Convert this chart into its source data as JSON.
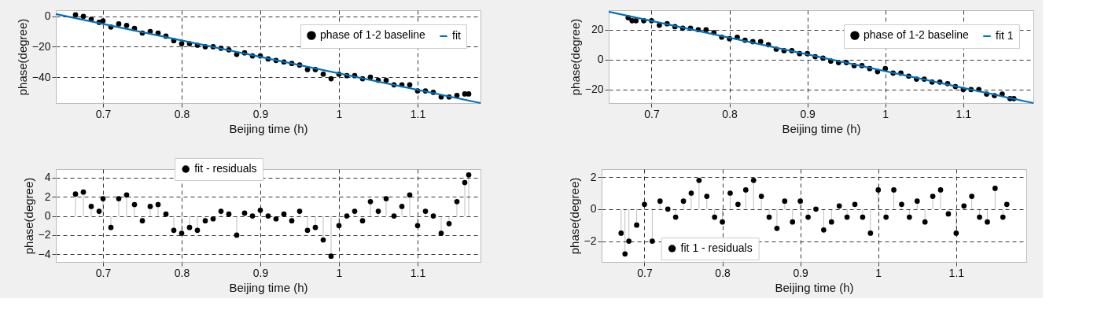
{
  "chart_data": [
    {
      "type": "scatter",
      "xlabel": "Beijing time (h)",
      "ylabel": "phase(degree)",
      "xlim": [
        0.64,
        1.18
      ],
      "ylim": [
        -57,
        4
      ],
      "xticks": [
        0.7,
        0.8,
        0.9,
        1,
        1.1
      ],
      "yticks": [
        -40,
        -20,
        0
      ],
      "grid": true,
      "legend": "top right",
      "marker": "circle",
      "line_style": "solid",
      "x": [
        0.665,
        0.675,
        0.685,
        0.695,
        0.7,
        0.71,
        0.72,
        0.73,
        0.74,
        0.75,
        0.76,
        0.77,
        0.78,
        0.79,
        0.8,
        0.81,
        0.82,
        0.83,
        0.84,
        0.85,
        0.86,
        0.87,
        0.88,
        0.89,
        0.9,
        0.91,
        0.92,
        0.93,
        0.94,
        0.95,
        0.96,
        0.97,
        0.98,
        0.99,
        1.0,
        1.01,
        1.02,
        1.03,
        1.04,
        1.05,
        1.06,
        1.07,
        1.08,
        1.09,
        1.1,
        1.11,
        1.12,
        1.13,
        1.14,
        1.15,
        1.16,
        1.165
      ],
      "series": [
        {
          "name": "phase of 1-2 baseline",
          "color": "#000000",
          "values": [
            1,
            0,
            -2,
            -4,
            -3,
            -7,
            -5,
            -6,
            -8,
            -11,
            -10,
            -11,
            -13,
            -16,
            -18,
            -18,
            -19,
            -20,
            -20,
            -21,
            -22,
            -25,
            -24,
            -26,
            -26,
            -28,
            -29,
            -30,
            -31,
            -32,
            -35,
            -35,
            -38,
            -41,
            -38,
            -39,
            -39,
            -41,
            -40,
            -42,
            -42,
            -45,
            -45,
            -45,
            -49,
            -49,
            -50,
            -53,
            -53,
            -52,
            -51,
            -51
          ]
        },
        {
          "name": "fit",
          "type": "line",
          "marker": "none",
          "color": "#0072bd",
          "x": [
            0.64,
            1.18
          ],
          "values": [
            1.5,
            -57
          ]
        }
      ]
    },
    {
      "type": "scatter",
      "xlabel": "Beijing time (h)",
      "ylabel": "phase(degree)",
      "xlim": [
        0.645,
        1.19
      ],
      "ylim": [
        -29,
        33
      ],
      "xticks": [
        0.7,
        0.8,
        0.9,
        1,
        1.1
      ],
      "yticks": [
        -20,
        0,
        20
      ],
      "grid": true,
      "legend": "top right",
      "marker": "circle",
      "line_style": "solid",
      "x": [
        0.67,
        0.675,
        0.68,
        0.69,
        0.7,
        0.71,
        0.72,
        0.73,
        0.74,
        0.75,
        0.76,
        0.77,
        0.78,
        0.79,
        0.8,
        0.81,
        0.82,
        0.83,
        0.84,
        0.85,
        0.86,
        0.87,
        0.88,
        0.89,
        0.9,
        0.91,
        0.92,
        0.93,
        0.94,
        0.95,
        0.96,
        0.97,
        0.98,
        0.99,
        1.0,
        1.01,
        1.02,
        1.03,
        1.04,
        1.05,
        1.06,
        1.07,
        1.08,
        1.09,
        1.1,
        1.11,
        1.12,
        1.13,
        1.14,
        1.15,
        1.16,
        1.165
      ],
      "series": [
        {
          "name": "phase of 1-2 baseline",
          "color": "#000000",
          "values": [
            28,
            26,
            26,
            26,
            26,
            23,
            24,
            22,
            21,
            21,
            20,
            20,
            18,
            15,
            14,
            15,
            13,
            12,
            12,
            10,
            7,
            6,
            6,
            4,
            4,
            2,
            1,
            -1,
            -2,
            -2,
            -4,
            -4,
            -6,
            -8,
            -6,
            -9,
            -9,
            -11,
            -13,
            -13,
            -15,
            -15,
            -16,
            -18,
            -20,
            -20,
            -20,
            -23,
            -24,
            -23,
            -26,
            -26
          ]
        },
        {
          "name": "fit 1",
          "type": "line",
          "marker": "none",
          "color": "#0072bd",
          "x": [
            0.645,
            1.19
          ],
          "values": [
            32,
            -29
          ]
        }
      ]
    },
    {
      "type": "lollipop",
      "xlabel": "Beijing time (h)",
      "ylabel": "phase(degree)",
      "xlim": [
        0.64,
        1.18
      ],
      "ylim": [
        -4.8,
        4.9
      ],
      "xticks": [
        0.7,
        0.8,
        0.9,
        1,
        1.1
      ],
      "yticks": [
        -4,
        -2,
        0,
        2,
        4
      ],
      "grid": true,
      "legend": "top",
      "marker": "circle",
      "x": [
        0.665,
        0.675,
        0.685,
        0.695,
        0.7,
        0.71,
        0.72,
        0.73,
        0.74,
        0.75,
        0.76,
        0.77,
        0.78,
        0.79,
        0.8,
        0.81,
        0.82,
        0.83,
        0.84,
        0.85,
        0.86,
        0.87,
        0.88,
        0.89,
        0.9,
        0.91,
        0.92,
        0.93,
        0.94,
        0.95,
        0.96,
        0.97,
        0.98,
        0.99,
        1.0,
        1.01,
        1.02,
        1.03,
        1.04,
        1.05,
        1.06,
        1.07,
        1.08,
        1.09,
        1.1,
        1.11,
        1.12,
        1.13,
        1.14,
        1.15,
        1.16,
        1.165
      ],
      "series": [
        {
          "name": "fit - residuals",
          "color": "#000000",
          "values": [
            2.3,
            2.5,
            1.0,
            0.5,
            1.8,
            -1.2,
            1.8,
            2.2,
            1.2,
            -0.5,
            1.0,
            1.2,
            0.2,
            -1.5,
            -1.8,
            -1.2,
            -1.5,
            -0.5,
            -0.3,
            0.5,
            0.2,
            -2.0,
            0.3,
            0.0,
            0.6,
            0.0,
            -0.3,
            0.2,
            -0.5,
            0.5,
            -1.5,
            -1.2,
            -2.5,
            -4.2,
            -1.0,
            0.0,
            0.5,
            -0.5,
            1.5,
            0.5,
            1.8,
            0.0,
            1.0,
            2.2,
            -1.0,
            0.5,
            0.0,
            -1.8,
            -0.8,
            1.5,
            3.5,
            4.3
          ]
        }
      ]
    },
    {
      "type": "lollipop",
      "xlabel": "Beijing time (h)",
      "ylabel": "phase(degree)",
      "xlim": [
        0.645,
        1.19
      ],
      "ylim": [
        -3.3,
        2.5
      ],
      "xticks": [
        0.7,
        0.8,
        0.9,
        1,
        1.1
      ],
      "yticks": [
        -2,
        0,
        2
      ],
      "grid": true,
      "legend": "bottom left",
      "marker": "circle",
      "x": [
        0.67,
        0.675,
        0.68,
        0.69,
        0.7,
        0.71,
        0.72,
        0.73,
        0.74,
        0.75,
        0.76,
        0.77,
        0.78,
        0.79,
        0.8,
        0.81,
        0.82,
        0.83,
        0.84,
        0.85,
        0.86,
        0.87,
        0.88,
        0.89,
        0.9,
        0.91,
        0.92,
        0.93,
        0.94,
        0.95,
        0.96,
        0.97,
        0.98,
        0.99,
        1.0,
        1.01,
        1.02,
        1.03,
        1.04,
        1.05,
        1.06,
        1.07,
        1.08,
        1.09,
        1.1,
        1.11,
        1.12,
        1.13,
        1.14,
        1.15,
        1.16,
        1.165
      ],
      "series": [
        {
          "name": "fit 1 - residuals",
          "color": "#000000",
          "values": [
            -1.5,
            -2.8,
            -2.0,
            -1.0,
            0.3,
            -2.0,
            0.5,
            0.0,
            -0.5,
            0.5,
            1.0,
            1.8,
            0.8,
            -0.5,
            -0.8,
            1.0,
            0.3,
            1.2,
            1.8,
            0.8,
            -0.5,
            -1.2,
            0.5,
            -0.8,
            0.5,
            -0.5,
            0.0,
            -1.3,
            -0.8,
            0.2,
            -0.5,
            0.3,
            -0.5,
            -1.5,
            1.2,
            -0.5,
            1.2,
            0.3,
            -0.5,
            0.5,
            -0.8,
            0.8,
            1.2,
            -0.3,
            -1.5,
            0.2,
            0.8,
            -0.5,
            -0.8,
            1.3,
            -0.5,
            0.3
          ]
        }
      ]
    }
  ]
}
